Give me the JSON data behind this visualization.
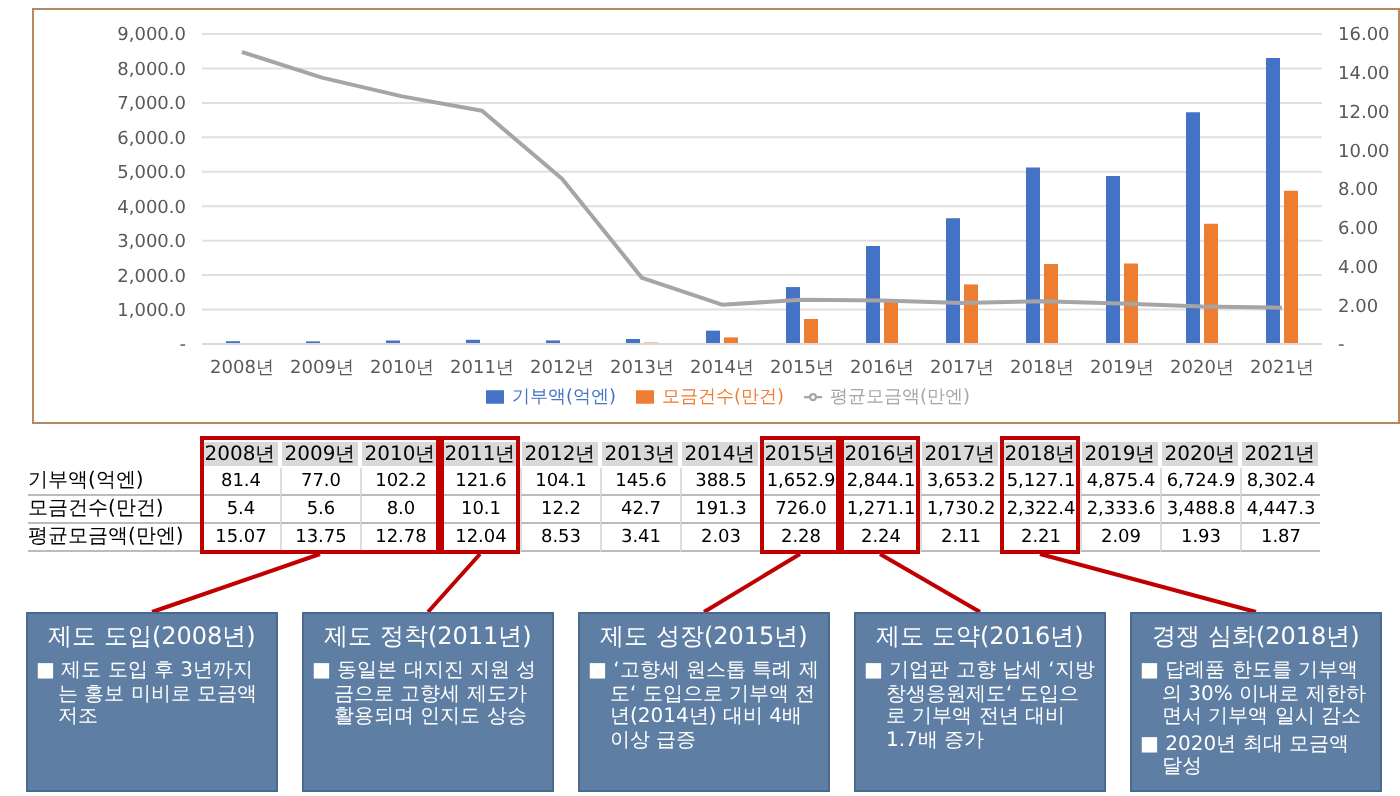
{
  "chart_data": {
    "type": "bar",
    "categories": [
      "2008년",
      "2009년",
      "2010년",
      "2011년",
      "2012년",
      "2013년",
      "2014년",
      "2015년",
      "2016년",
      "2017년",
      "2018년",
      "2019년",
      "2020년",
      "2021년"
    ],
    "series": [
      {
        "name": "기부액(억엔)",
        "color": "#4472c4",
        "values": [
          81.4,
          77.0,
          102.2,
          121.6,
          104.1,
          145.6,
          388.5,
          1652.9,
          2844.1,
          3653.2,
          5127.1,
          4875.4,
          6724.9,
          8302.4
        ],
        "value_labels": [
          "81.4",
          "77.0",
          "102.2",
          "121.6",
          "104.1",
          "145.6",
          "388.5",
          "1,652.9",
          "2,844.1",
          "3,653.2",
          "5,127.1",
          "4,875.4",
          "6,724.9",
          "8,302.4"
        ]
      },
      {
        "name": "모금건수(만건)",
        "color": "#ed7d31",
        "values": [
          5.4,
          5.6,
          8.0,
          10.1,
          12.2,
          42.7,
          191.3,
          726.0,
          1271.1,
          1730.2,
          2322.4,
          2333.6,
          3488.8,
          4447.3
        ],
        "value_labels": [
          "5.4",
          "5.6",
          "8.0",
          "10.1",
          "12.2",
          "42.7",
          "191.3",
          "726.0",
          "1,271.1",
          "1,730.2",
          "2,322.4",
          "2,333.6",
          "3,488.8",
          "4,447.3"
        ]
      },
      {
        "name": "평균모금액(만엔)",
        "type": "line",
        "axis": "y2",
        "color": "#a5a5a5",
        "values": [
          15.07,
          13.75,
          12.78,
          12.04,
          8.53,
          3.41,
          2.03,
          2.28,
          2.24,
          2.11,
          2.21,
          2.09,
          1.93,
          1.87
        ],
        "value_labels": [
          "15.07",
          "13.75",
          "12.78",
          "12.04",
          "8.53",
          "3.41",
          "2.03",
          "2.28",
          "2.24",
          "2.11",
          "2.21",
          "2.09",
          "1.93",
          "1.87"
        ]
      }
    ],
    "ylim": [
      0,
      9000
    ],
    "yticks": [
      {
        "value": 0,
        "label": "-"
      },
      {
        "value": 1000,
        "label": "1,000.0"
      },
      {
        "value": 2000,
        "label": "2,000.0"
      },
      {
        "value": 3000,
        "label": "3,000.0"
      },
      {
        "value": 4000,
        "label": "4,000.0"
      },
      {
        "value": 5000,
        "label": "5,000.0"
      },
      {
        "value": 6000,
        "label": "6,000.0"
      },
      {
        "value": 7000,
        "label": "7,000.0"
      },
      {
        "value": 8000,
        "label": "8,000.0"
      },
      {
        "value": 9000,
        "label": "9,000.0"
      }
    ],
    "y2lim": [
      0,
      16
    ],
    "y2ticks": [
      {
        "value": 0,
        "label": "-"
      },
      {
        "value": 2,
        "label": "2.00"
      },
      {
        "value": 4,
        "label": "4.00"
      },
      {
        "value": 6,
        "label": "6.00"
      },
      {
        "value": 8,
        "label": "8.00"
      },
      {
        "value": 10,
        "label": "10.00"
      },
      {
        "value": 12,
        "label": "12.00"
      },
      {
        "value": 14,
        "label": "14.00"
      },
      {
        "value": 16,
        "label": "16.00"
      }
    ],
    "grid": "y",
    "legend": "bottom",
    "marker": "none",
    "line_style": "solid",
    "annotations": [
      "제도 도입(2008년)\n■ 제도 도입 후 3년까지는 홍보 미비로 모금액 저조",
      "제도 정착(2011년)\n■ 동일본 대지진 지원 성금으로 고향세 제도가 활용되며 인지도 상승",
      "제도 성장(2015년)\n■ ‘고향세 원스톱 특례 제도‘ 도입으로 기부액 전년(2014년) 대비 4배 이상 급증",
      "제도 도약(2016년)\n■ 기업판 고향 납세 ‘지방창생응원제도‘ 도입으로 기부액 전년 대비 1.7배 증가",
      "경쟁 심화(2018년)\n■ 답례품 한도를 기부액의 30% 이내로 제한하면서 기부액 일시 감소\n■ 2020년 최대 모금액 달성"
    ]
  }
}
